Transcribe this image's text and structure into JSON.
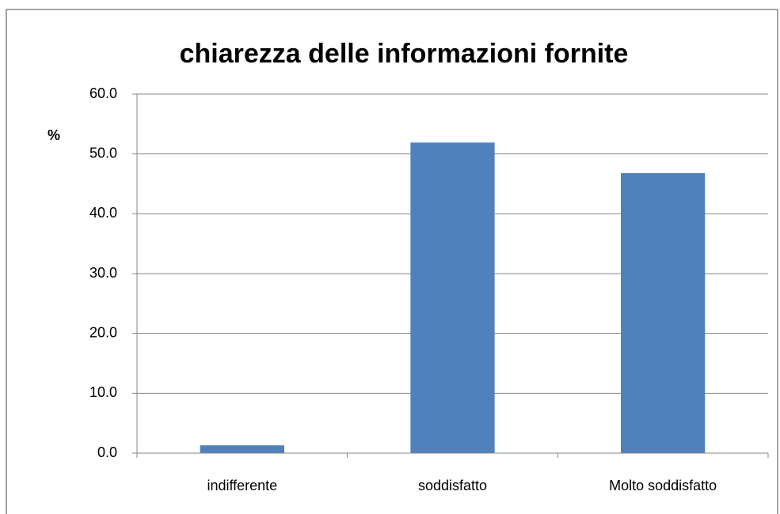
{
  "chart_data": {
    "type": "bar",
    "title": "chiarezza delle informazioni fornite",
    "y_label": "%",
    "categories": [
      "indifferente",
      "soddisfatto",
      "Molto soddisfatto"
    ],
    "values": [
      1.3,
      51.9,
      46.8
    ],
    "color": "#4f81bd",
    "ylim": [
      0,
      60
    ],
    "yticks": [
      {
        "value": 0,
        "label": "0.0"
      },
      {
        "value": 10,
        "label": "10.0"
      },
      {
        "value": 20,
        "label": "20.0"
      },
      {
        "value": 30,
        "label": "30.0"
      },
      {
        "value": 40,
        "label": "40.0"
      },
      {
        "value": 50,
        "label": "50.0"
      },
      {
        "value": 60,
        "label": "60.0"
      }
    ],
    "grid": true
  }
}
